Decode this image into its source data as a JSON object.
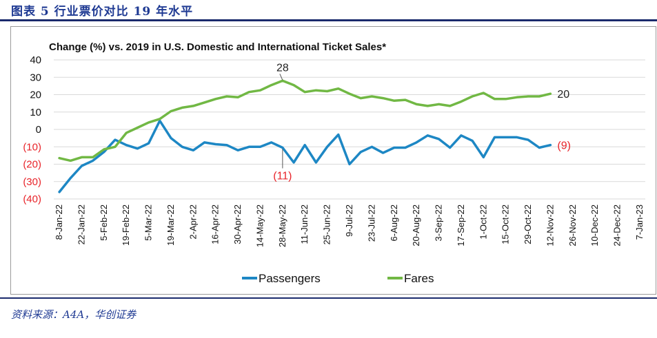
{
  "figure_label": "图表 5    行业票价对比 19 年水平",
  "source_note": "资料来源：A4A，华创证券",
  "chart_data": {
    "type": "line",
    "title": "Change (%) vs. 2019 in U.S. Domestic and International Ticket Sales*",
    "xlabel": "",
    "ylabel": "",
    "ylim": [
      -40,
      40
    ],
    "yticks": [
      {
        "value": 40,
        "label": "40"
      },
      {
        "value": 30,
        "label": "30"
      },
      {
        "value": 20,
        "label": "20"
      },
      {
        "value": 10,
        "label": "10"
      },
      {
        "value": 0,
        "label": "0"
      },
      {
        "value": -10,
        "label": "(10)"
      },
      {
        "value": -20,
        "label": "(20)"
      },
      {
        "value": -30,
        "label": "(30)"
      },
      {
        "value": -40,
        "label": "(40)"
      }
    ],
    "negative_tick_color": "#e8242a",
    "x_tick_labels": [
      "8-Jan-22",
      "22-Jan-22",
      "5-Feb-22",
      "19-Feb-22",
      "5-Mar-22",
      "19-Mar-22",
      "2-Apr-22",
      "16-Apr-22",
      "30-Apr-22",
      "14-May-22",
      "28-May-22",
      "11-Jun-22",
      "25-Jun-22",
      "9-Jul-22",
      "23-Jul-22",
      "6-Aug-22",
      "20-Aug-22",
      "3-Sep-22",
      "17-Sep-22",
      "1-Oct-22",
      "15-Oct-22",
      "29-Oct-22",
      "12-Nov-22",
      "26-Nov-22",
      "10-Dec-22",
      "24-Dec-22",
      "7-Jan-23"
    ],
    "x_weeks_total": 53,
    "grid": true,
    "legend_position": "bottom",
    "series": [
      {
        "name": "Passengers",
        "color": "#1d87c4",
        "values": [
          -36,
          -28,
          -21,
          -18,
          -13,
          -6,
          -9,
          -11,
          -8,
          5,
          -5,
          -10,
          -12,
          -7.5,
          -8.5,
          -9,
          -12,
          -10,
          -10,
          -7.5,
          -10.5,
          -19,
          -9,
          -19,
          -10,
          -3,
          -20,
          -13,
          -10,
          -13.5,
          -10.5,
          -10.5,
          -7.5,
          -3.5,
          -5.5,
          -10.5,
          -3.5,
          -6.5,
          -16,
          -4.5,
          -4.5,
          -4.5,
          -6,
          -10.5,
          -9
        ]
      },
      {
        "name": "Fares",
        "color": "#71b844",
        "values": [
          -16.5,
          -18,
          -16,
          -16,
          -11.5,
          -10,
          -2,
          1,
          4,
          6,
          10.5,
          12.5,
          13.5,
          15.5,
          17.5,
          19,
          18.5,
          21.5,
          22.5,
          25.5,
          28,
          25.5,
          21.5,
          22.5,
          22,
          23.5,
          20.5,
          18,
          19,
          18,
          16.5,
          17,
          14.5,
          13.5,
          14.5,
          13.5,
          16,
          19,
          21,
          17.5,
          17.5,
          18.5,
          19,
          19,
          20.5
        ]
      }
    ],
    "annotations": [
      {
        "series": "Fares",
        "week": 20,
        "text": "28",
        "color": "#222222"
      },
      {
        "series": "Fares",
        "week": 44,
        "text": "20",
        "color": "#222222"
      },
      {
        "series": "Passengers",
        "week": 20,
        "text": "(11)",
        "color": "#e8242a"
      },
      {
        "series": "Passengers",
        "week": 44,
        "text": "(9)",
        "color": "#e8242a"
      }
    ]
  }
}
